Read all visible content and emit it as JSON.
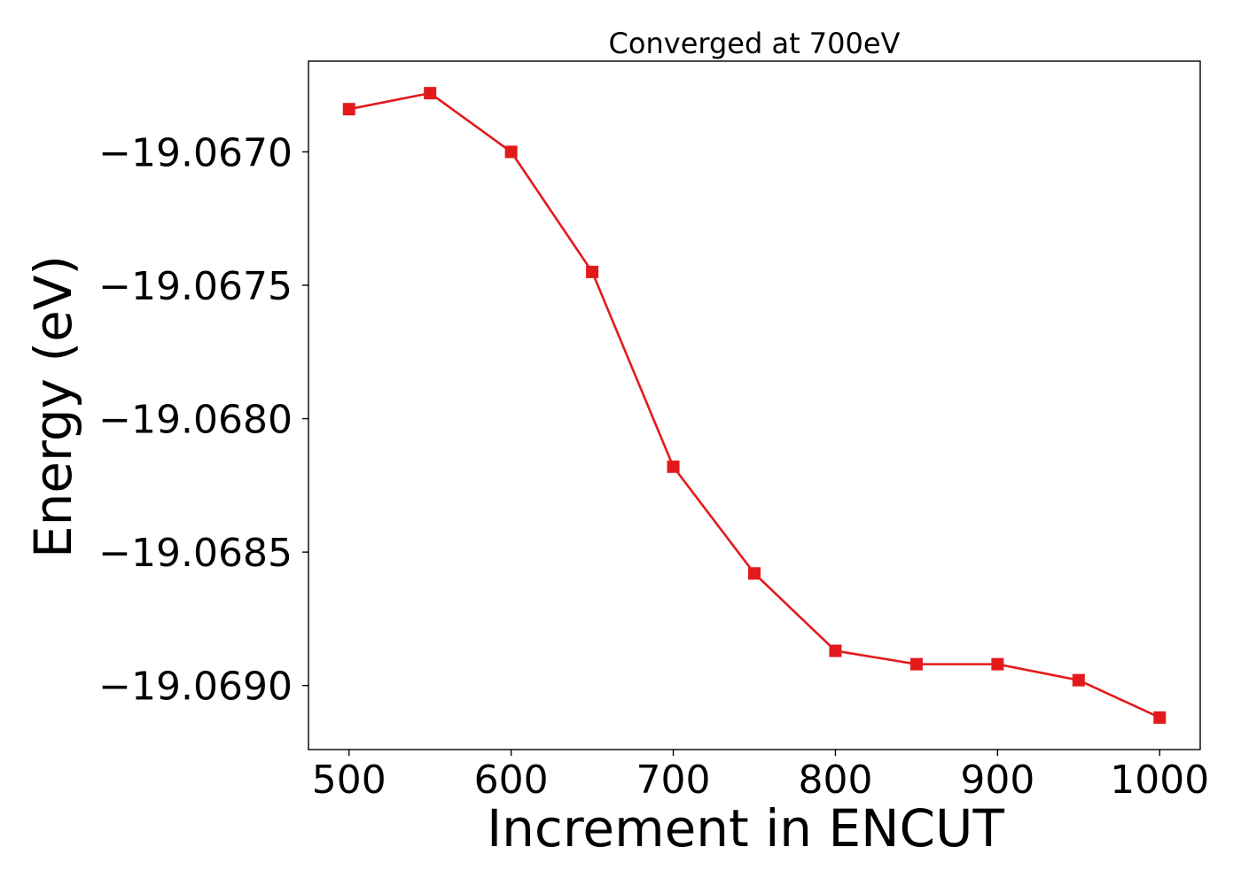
{
  "chart_data": {
    "type": "line",
    "title": "Converged at 700eV",
    "xlabel": "Increment in ENCUT",
    "ylabel": "Energy (eV)",
    "x": [
      500,
      550,
      600,
      650,
      700,
      750,
      800,
      850,
      900,
      950,
      1000
    ],
    "series": [
      {
        "values": [
          -19.06684,
          -19.06678,
          -19.067,
          -19.06745,
          -19.06818,
          -19.06858,
          -19.06887,
          -19.06892,
          -19.06892,
          -19.06898,
          -19.06912
        ],
        "color": "#e31a1c",
        "marker": "square"
      }
    ],
    "xlim": [
      475,
      1025
    ],
    "ylim": [
      -19.06924,
      -19.06666
    ],
    "xticks": [
      500,
      600,
      700,
      800,
      900,
      1000
    ],
    "xtick_labels": [
      "500",
      "600",
      "700",
      "800",
      "900",
      "1000"
    ],
    "yticks": [
      -19.067,
      -19.0675,
      -19.068,
      -19.0685,
      -19.069
    ],
    "ytick_labels": [
      "−19.0670",
      "−19.0675",
      "−19.0680",
      "−19.0685",
      "−19.0690"
    ],
    "grid": false,
    "legend": "none"
  }
}
